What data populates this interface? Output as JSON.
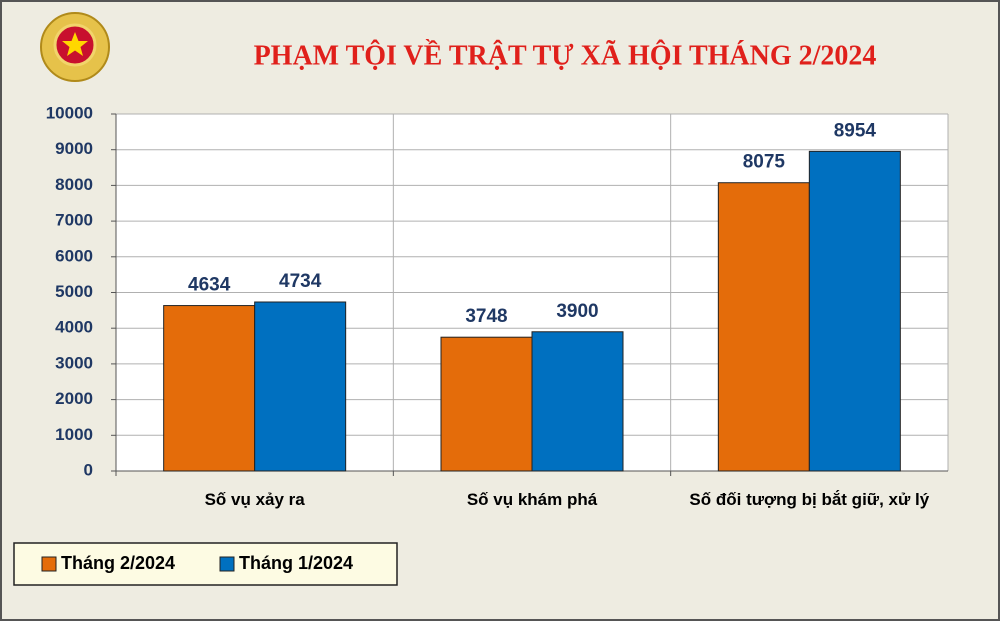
{
  "chart_data": {
    "type": "bar",
    "title": "PHẠM TỘI VỀ TRẬT TỰ XÃ HỘI THÁNG 2/2024",
    "categories": [
      "Số vụ xảy ra",
      "Số vụ khám phá",
      "Số đối tượng bị bắt giữ, xử lý"
    ],
    "series": [
      {
        "name": "Tháng 2/2024",
        "color": "#e46c0a",
        "values": [
          4634,
          3748,
          8075
        ]
      },
      {
        "name": "Tháng 1/2024",
        "color": "#0070c0",
        "values": [
          4734,
          3900,
          8954
        ]
      }
    ],
    "ylim": [
      0,
      10000
    ],
    "yticks": [
      0,
      1000,
      2000,
      3000,
      4000,
      5000,
      6000,
      7000,
      8000,
      9000,
      10000
    ],
    "grid": true,
    "legend_position": "bottom-left"
  }
}
